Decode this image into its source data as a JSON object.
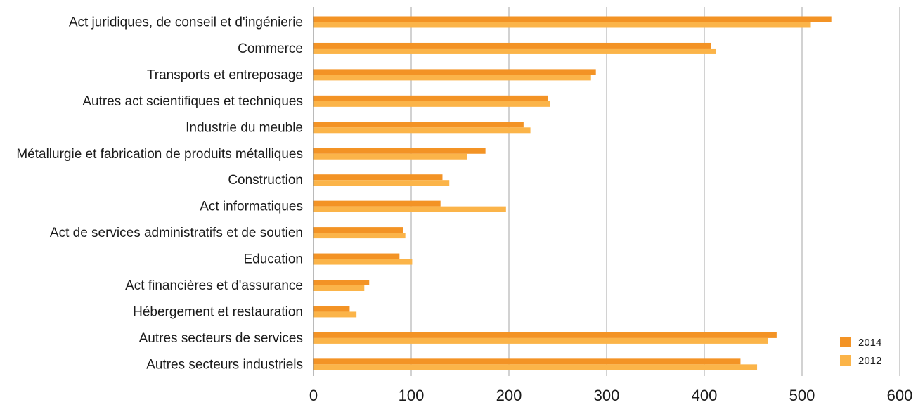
{
  "chart_data": {
    "type": "bar",
    "orientation": "horizontal",
    "title": "",
    "xlabel": "",
    "ylabel": "",
    "xlim": [
      0,
      600
    ],
    "x_ticks": [
      0,
      100,
      200,
      300,
      400,
      500,
      600
    ],
    "grid": "vertical",
    "legend_position": "bottom-right",
    "categories": [
      "Act juridiques, de conseil et d'ingénierie",
      "Commerce",
      "Transports et entreposage",
      "Autres act scientifiques et techniques",
      "Industrie du meuble",
      "Métallurgie et fabrication de produits métalliques",
      "Construction",
      "Act informatiques",
      "Act de services administratifs et de soutien",
      "Education",
      "Act financières et d'assurance",
      "Hébergement et restauration",
      "Autres secteurs de services",
      "Autres secteurs industriels"
    ],
    "series": [
      {
        "name": "2014",
        "color": "#f39325",
        "values": [
          530,
          407,
          289,
          240,
          215,
          176,
          132,
          130,
          92,
          88,
          57,
          37,
          474,
          437
        ]
      },
      {
        "name": "2012",
        "color": "#fbb449",
        "values": [
          509,
          412,
          284,
          242,
          222,
          157,
          139,
          197,
          94,
          101,
          52,
          44,
          465,
          454
        ]
      }
    ]
  }
}
